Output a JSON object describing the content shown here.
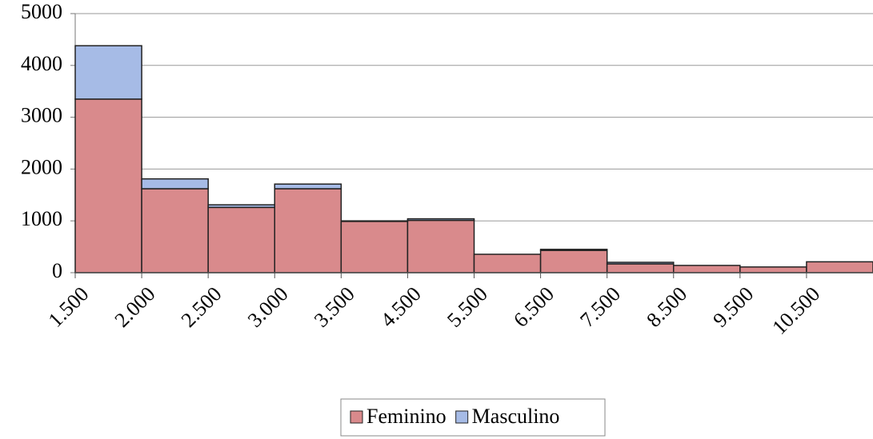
{
  "chart_data": {
    "type": "bar",
    "stacked": true,
    "categories": [
      "1.500",
      "2.000",
      "2.500",
      "3.000",
      "3.500",
      "4.500",
      "5.500",
      "6.500",
      "7.500",
      "8.500",
      "9.500",
      "10.500"
    ],
    "series": [
      {
        "name": "Feminino",
        "color": "#d98a8c",
        "values": [
          3350,
          1620,
          1260,
          1620,
          990,
          1010,
          355,
          430,
          170,
          140,
          110,
          210
        ]
      },
      {
        "name": "Masculino",
        "color": "#a6bbe6",
        "values": [
          1030,
          190,
          50,
          90,
          10,
          30,
          0,
          20,
          30,
          0,
          0,
          0
        ]
      }
    ],
    "ylim": [
      0,
      5000
    ],
    "yticks": [
      0,
      1000,
      2000,
      3000,
      4000,
      5000
    ],
    "grid": true,
    "legend": "bottom"
  }
}
